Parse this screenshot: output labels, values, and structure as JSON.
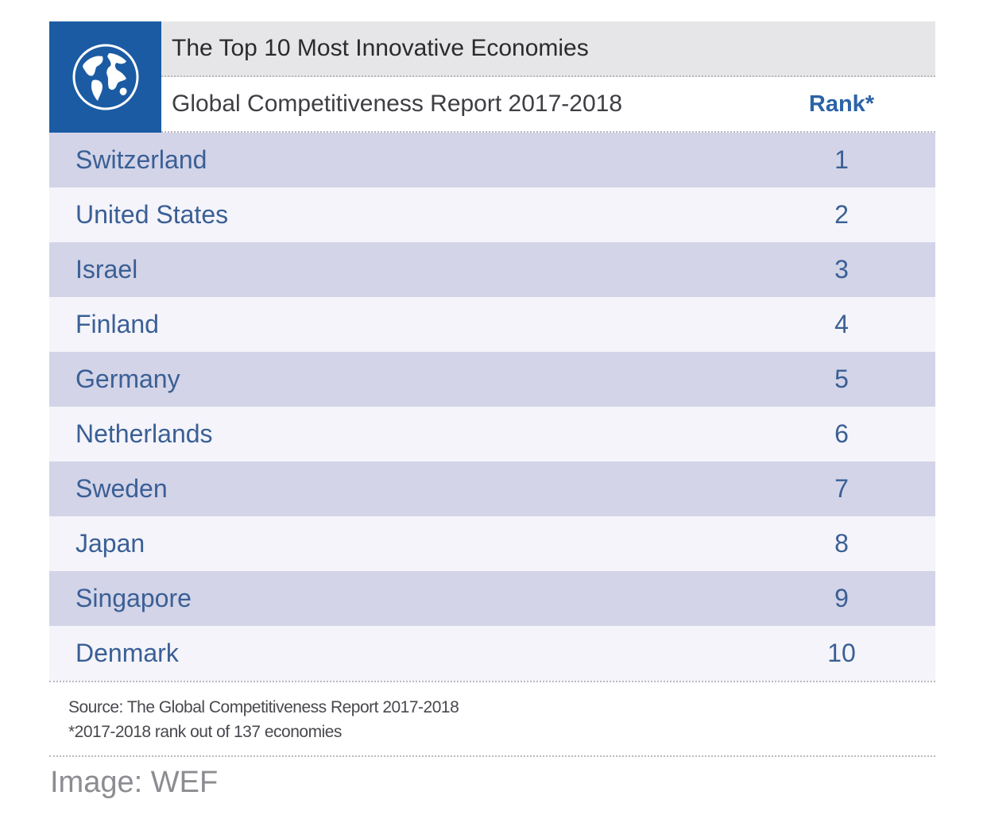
{
  "header": {
    "title": "The Top 10 Most Innovative Economies",
    "subtitle": "Global Competitiveness Report 2017-2018",
    "rank_label": "Rank*",
    "logo_icon": "globe-icon"
  },
  "chart_data": {
    "type": "table",
    "title": "The Top 10 Most Innovative Economies",
    "subtitle": "Global Competitiveness Report 2017-2018",
    "columns": [
      "",
      "Rank*"
    ],
    "rows": [
      {
        "country": "Switzerland",
        "rank": "1"
      },
      {
        "country": "United States",
        "rank": "2"
      },
      {
        "country": "Israel",
        "rank": "3"
      },
      {
        "country": "Finland",
        "rank": "4"
      },
      {
        "country": "Germany",
        "rank": "5"
      },
      {
        "country": "Netherlands",
        "rank": "6"
      },
      {
        "country": "Sweden",
        "rank": "7"
      },
      {
        "country": "Japan",
        "rank": "8"
      },
      {
        "country": "Singapore",
        "rank": "9"
      },
      {
        "country": "Denmark",
        "rank": "10"
      }
    ]
  },
  "footnotes": {
    "source": "Source: The Global Competitiveness Report 2017-2018",
    "note": "*2017-2018 rank out of 137 economies"
  },
  "credit": "Image: WEF",
  "colors": {
    "brand_blue": "#1b5ba3",
    "row_odd": "#d3d4e8",
    "row_even": "#f4f4fa",
    "text_blue": "#3a5f95"
  }
}
